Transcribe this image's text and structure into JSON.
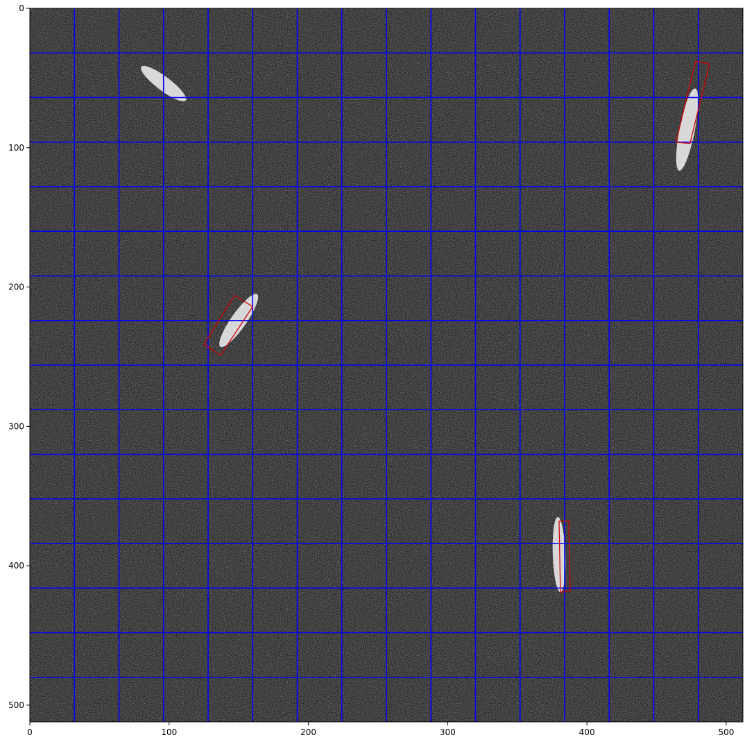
{
  "image": {
    "description_units": "pixels",
    "width": 512,
    "height": 512,
    "background": "dark SAR-like speckle noise",
    "grid": {
      "spacing": 32,
      "color": "#0000ff"
    },
    "box_color": "#d00000",
    "ships": [
      {
        "name": "ship-top-left",
        "cx": 96,
        "cy": 54,
        "length": 40,
        "width": 10,
        "angle_deg": 37,
        "boxed": false
      },
      {
        "name": "ship-center",
        "cx": 150,
        "cy": 224,
        "length": 46,
        "width": 11,
        "angle_deg": -55,
        "boxed": true,
        "box": [
          [
            125,
            241
          ],
          [
            147,
            206
          ],
          [
            160,
            214
          ],
          [
            137,
            249
          ]
        ]
      },
      {
        "name": "ship-top-right",
        "cx": 472,
        "cy": 87,
        "length": 60,
        "width": 11,
        "angle_deg": -79,
        "boxed": true,
        "box": [
          [
            464,
            96
          ],
          [
            478,
            38
          ],
          [
            488,
            40
          ],
          [
            474,
            97
          ]
        ]
      },
      {
        "name": "ship-bottom",
        "cx": 380,
        "cy": 392,
        "length": 54,
        "width": 9,
        "angle_deg": 88,
        "boxed": true,
        "box": [
          [
            380,
            368
          ],
          [
            387,
            368
          ],
          [
            388,
            418
          ],
          [
            381,
            419
          ]
        ]
      }
    ]
  },
  "axes": {
    "x_ticks": [
      "0",
      "100",
      "200",
      "300",
      "400",
      "500"
    ],
    "y_ticks": [
      "0",
      "100",
      "200",
      "300",
      "400",
      "500"
    ],
    "x_tick_values": [
      0,
      100,
      200,
      300,
      400,
      500
    ],
    "y_tick_values": [
      0,
      100,
      200,
      300,
      400,
      500
    ],
    "xlim": [
      0,
      512
    ],
    "ylim": [
      512,
      0
    ]
  }
}
